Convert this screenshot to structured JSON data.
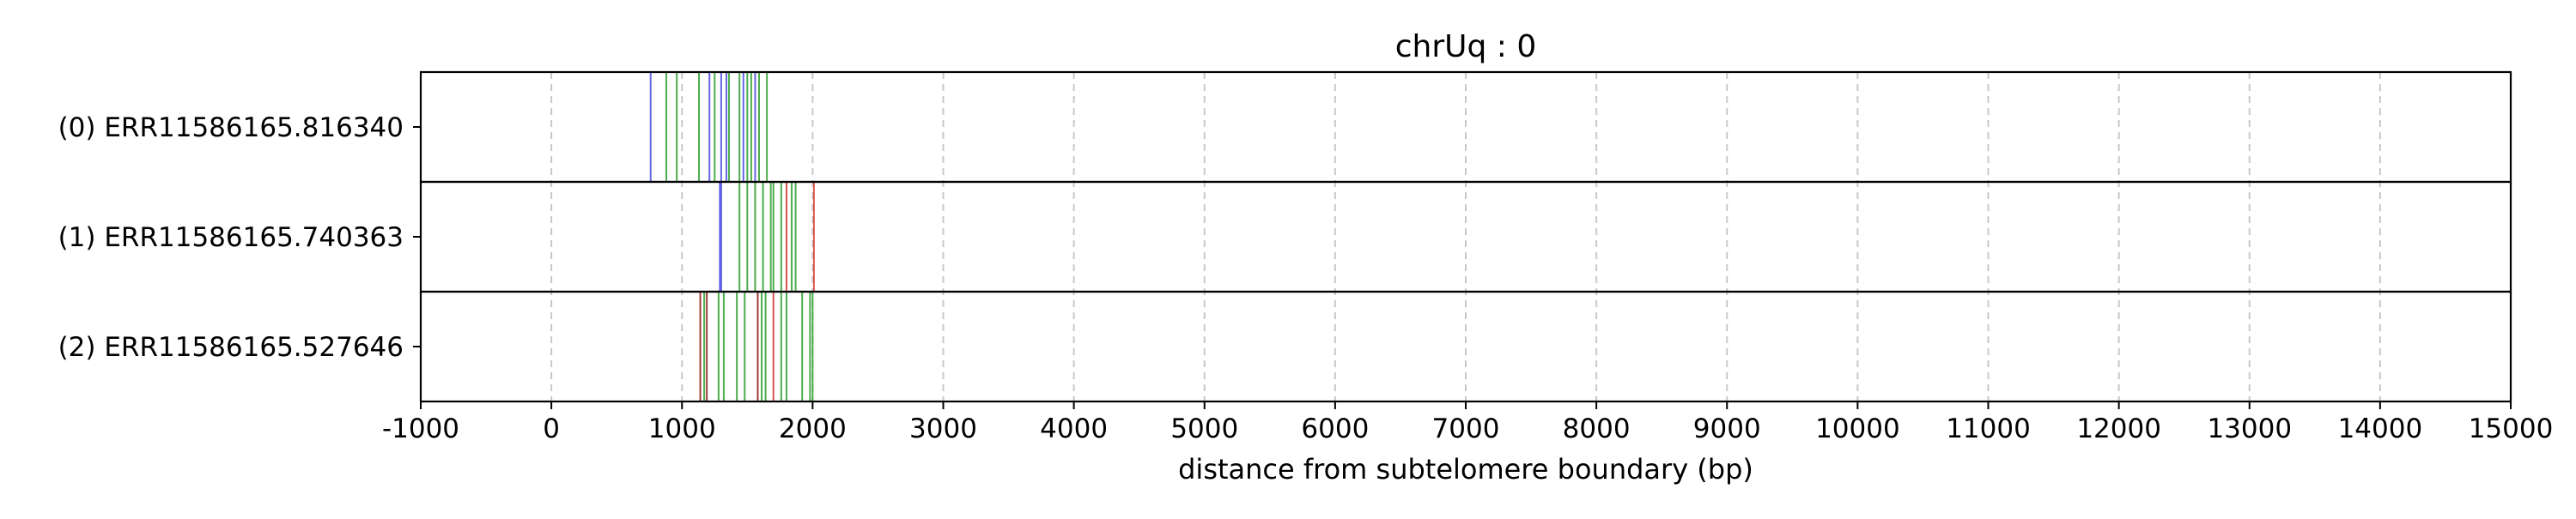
{
  "chart_data": {
    "type": "multi-track event plot",
    "title": "chrUq : 0",
    "xlabel": "distance from subtelomere boundary (bp)",
    "xlim": [
      -1000,
      15000
    ],
    "xticks": [
      -1000,
      0,
      1000,
      2000,
      3000,
      4000,
      5000,
      6000,
      7000,
      8000,
      9000,
      10000,
      11000,
      12000,
      13000,
      14000,
      15000
    ],
    "grid": "vertical dashed",
    "colors": {
      "blue": "#4a4ae0",
      "green": "#2e9e2e",
      "red": "#d43b2e",
      "darkred": "#8b1a1a",
      "grid": "#c8c8c8"
    },
    "tracks": [
      {
        "label": "(0) ERR11586165.816340",
        "marks": [
          {
            "x": 760,
            "color": "blue"
          },
          {
            "x": 880,
            "color": "green"
          },
          {
            "x": 960,
            "color": "green"
          },
          {
            "x": 1130,
            "color": "green"
          },
          {
            "x": 1210,
            "color": "blue"
          },
          {
            "x": 1250,
            "color": "green"
          },
          {
            "x": 1300,
            "color": "blue"
          },
          {
            "x": 1340,
            "color": "blue"
          },
          {
            "x": 1360,
            "color": "green"
          },
          {
            "x": 1440,
            "color": "green"
          },
          {
            "x": 1470,
            "color": "blue"
          },
          {
            "x": 1500,
            "color": "green"
          },
          {
            "x": 1530,
            "color": "green"
          },
          {
            "x": 1560,
            "color": "blue"
          },
          {
            "x": 1590,
            "color": "green"
          },
          {
            "x": 1650,
            "color": "green"
          }
        ]
      },
      {
        "label": "(1) ERR11586165.740363",
        "marks": [
          {
            "x": 1290,
            "color": "blue"
          },
          {
            "x": 1300,
            "color": "blue"
          },
          {
            "x": 1440,
            "color": "green"
          },
          {
            "x": 1500,
            "color": "green"
          },
          {
            "x": 1560,
            "color": "green"
          },
          {
            "x": 1620,
            "color": "green"
          },
          {
            "x": 1680,
            "color": "green"
          },
          {
            "x": 1700,
            "color": "green"
          },
          {
            "x": 1760,
            "color": "green"
          },
          {
            "x": 1800,
            "color": "red"
          },
          {
            "x": 1840,
            "color": "green"
          },
          {
            "x": 1870,
            "color": "green"
          },
          {
            "x": 2010,
            "color": "red"
          }
        ]
      },
      {
        "label": "(2) ERR11586165.527646",
        "marks": [
          {
            "x": 1140,
            "color": "darkred"
          },
          {
            "x": 1170,
            "color": "green"
          },
          {
            "x": 1190,
            "color": "darkred"
          },
          {
            "x": 1280,
            "color": "green"
          },
          {
            "x": 1320,
            "color": "green"
          },
          {
            "x": 1420,
            "color": "green"
          },
          {
            "x": 1480,
            "color": "green"
          },
          {
            "x": 1580,
            "color": "darkred"
          },
          {
            "x": 1610,
            "color": "green"
          },
          {
            "x": 1640,
            "color": "green"
          },
          {
            "x": 1700,
            "color": "red"
          },
          {
            "x": 1760,
            "color": "green"
          },
          {
            "x": 1800,
            "color": "green"
          },
          {
            "x": 1920,
            "color": "green"
          },
          {
            "x": 1980,
            "color": "green"
          },
          {
            "x": 2000,
            "color": "green"
          }
        ]
      }
    ]
  }
}
